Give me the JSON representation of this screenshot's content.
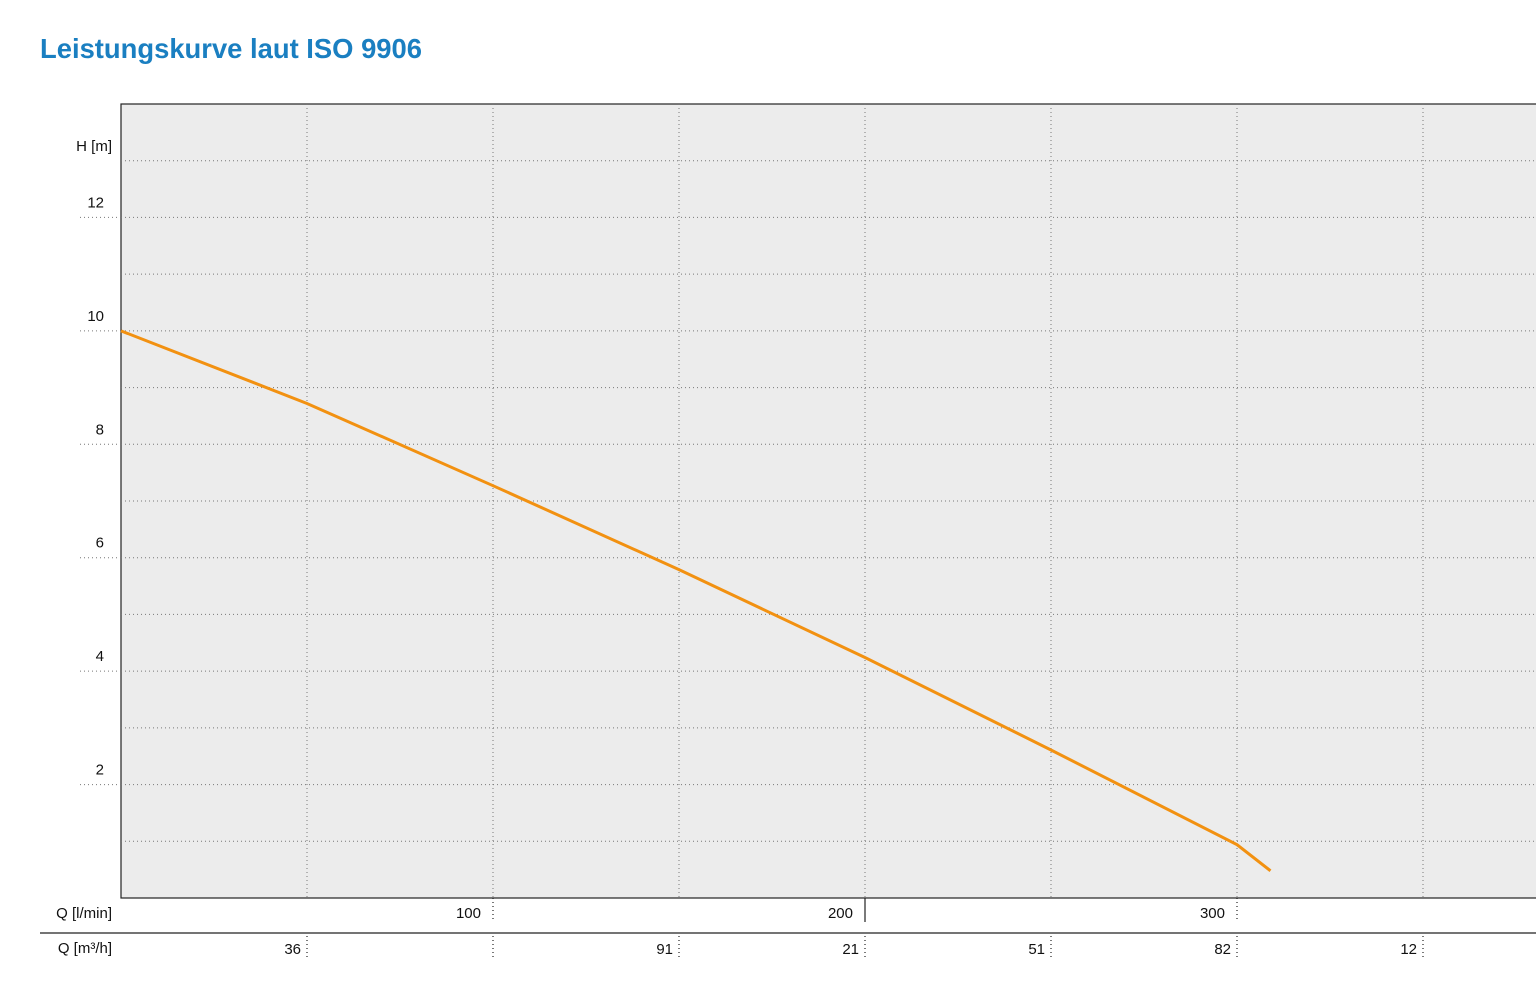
{
  "chart_data": {
    "type": "line",
    "title": "Leistungskurve laut ISO 9906",
    "ylabel": "H [m]",
    "xlabel": "Q [l/min]",
    "x2label": "Q [m³/h]",
    "x": [
      0,
      50,
      100,
      150,
      200,
      250,
      300,
      309
    ],
    "values": [
      10,
      8.72,
      7.27,
      5.79,
      4.24,
      2.61,
      0.94,
      0.48
    ],
    "color": "#f29111",
    "xlim": [
      0,
      380
    ],
    "ylim": [
      0,
      14
    ],
    "xticks": [
      100,
      200,
      300
    ],
    "x2ticks": [
      {
        "value": 50,
        "label": "36"
      },
      {
        "value": 150,
        "label": "91"
      },
      {
        "value": 200,
        "label": "21"
      },
      {
        "value": 250,
        "label": "51"
      },
      {
        "value": 300,
        "label": "82"
      },
      {
        "value": 350,
        "label": "12"
      }
    ],
    "yticks": [
      2,
      4,
      6,
      8,
      10,
      12
    ],
    "xgrid": [
      50,
      100,
      150,
      200,
      250,
      300,
      350
    ],
    "ygrid": [
      1,
      2,
      3,
      4,
      5,
      6,
      7,
      8,
      9,
      10,
      11,
      12,
      13
    ]
  }
}
